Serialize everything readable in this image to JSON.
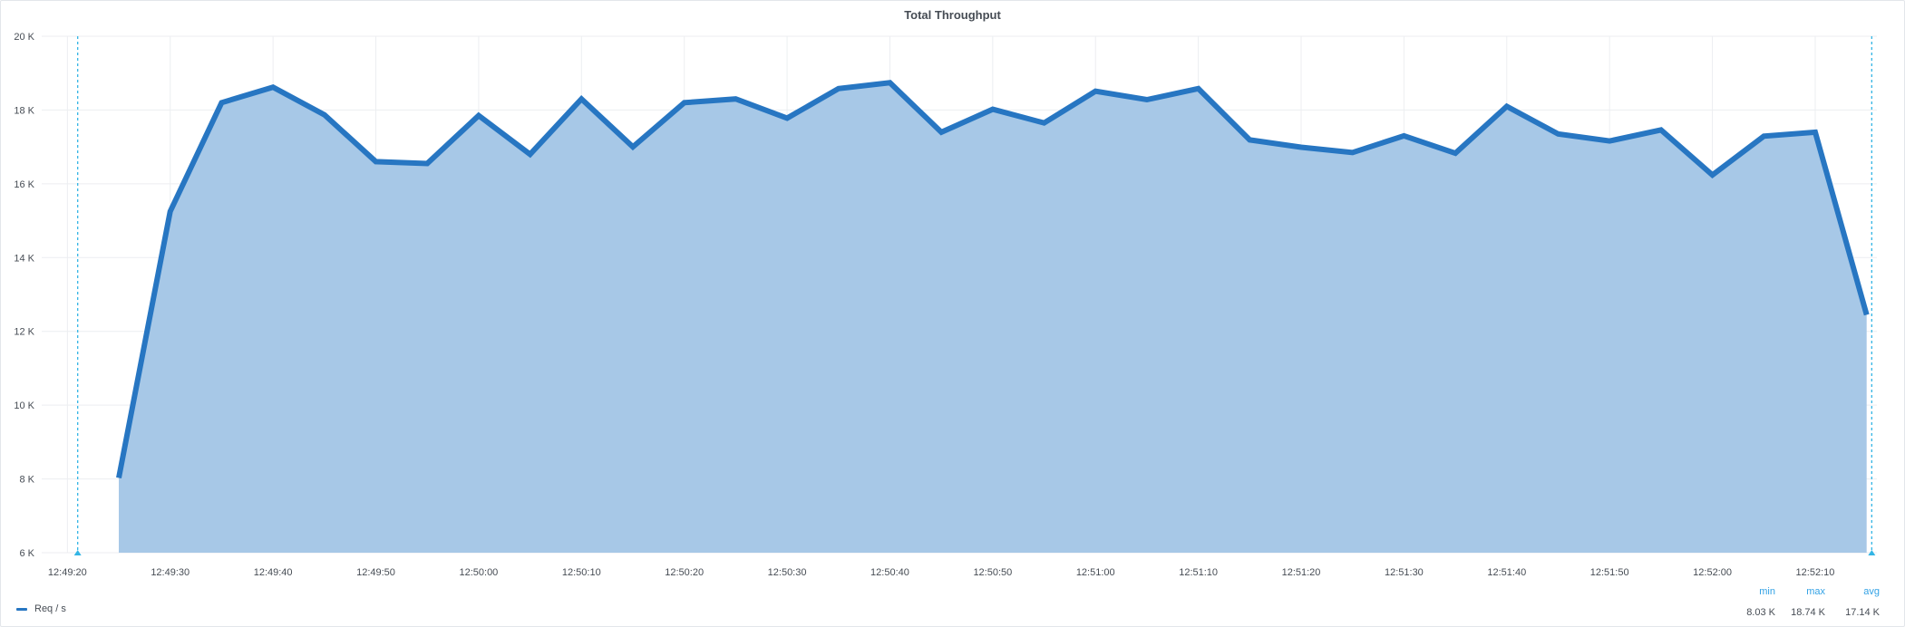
{
  "panel": {
    "title": "Total Throughput"
  },
  "colors": {
    "series_line": "#2776c2",
    "series_fill": "#a7c8e7",
    "grid": "#eceef1",
    "axis_text": "#464c54",
    "time_marker": "#33b5e5",
    "stat_header": "#33a2e5"
  },
  "chart_data": {
    "type": "area",
    "title": "Total Throughput",
    "xlabel": "",
    "ylabel": "",
    "x_ticks": [
      "12:49:20",
      "12:49:30",
      "12:49:40",
      "12:49:50",
      "12:50:00",
      "12:50:10",
      "12:50:20",
      "12:50:30",
      "12:50:40",
      "12:50:50",
      "12:51:00",
      "12:51:10",
      "12:51:20",
      "12:51:30",
      "12:51:40",
      "12:51:50",
      "12:52:00",
      "12:52:10"
    ],
    "y_ticks": [
      "6 K",
      "8 K",
      "10 K",
      "12 K",
      "14 K",
      "16 K",
      "18 K",
      "20 K"
    ],
    "ylim": [
      6000,
      20000
    ],
    "xlim": [
      "12:49:17.5",
      "12:52:16"
    ],
    "grid": true,
    "time_markers": [
      "12:49:21",
      "12:52:15.5"
    ],
    "series": [
      {
        "name": "Req / s",
        "x": [
          "12:49:25",
          "12:49:30",
          "12:49:35",
          "12:49:40",
          "12:49:45",
          "12:49:50",
          "12:49:55",
          "12:50:00",
          "12:50:05",
          "12:50:10",
          "12:50:15",
          "12:50:20",
          "12:50:25",
          "12:50:30",
          "12:50:35",
          "12:50:40",
          "12:50:45",
          "12:50:50",
          "12:50:55",
          "12:51:00",
          "12:51:05",
          "12:51:10",
          "12:51:15",
          "12:51:20",
          "12:51:25",
          "12:51:30",
          "12:51:35",
          "12:51:40",
          "12:51:45",
          "12:51:50",
          "12:51:55",
          "12:52:00",
          "12:52:05",
          "12:52:10",
          "12:52:15"
        ],
        "values": [
          8030,
          15250,
          18200,
          18620,
          17870,
          16600,
          16550,
          17850,
          16800,
          18300,
          17000,
          18200,
          18300,
          17780,
          18580,
          18740,
          17400,
          18020,
          17650,
          18510,
          18280,
          18580,
          17190,
          16990,
          16850,
          17300,
          16830,
          18100,
          17350,
          17160,
          17460,
          16240,
          17290,
          17400,
          12450
        ]
      }
    ]
  },
  "legend": {
    "series_label": "Req / s",
    "headers": [
      "min",
      "max",
      "avg"
    ],
    "values": [
      "8.03 K",
      "18.74 K",
      "17.14 K"
    ]
  }
}
